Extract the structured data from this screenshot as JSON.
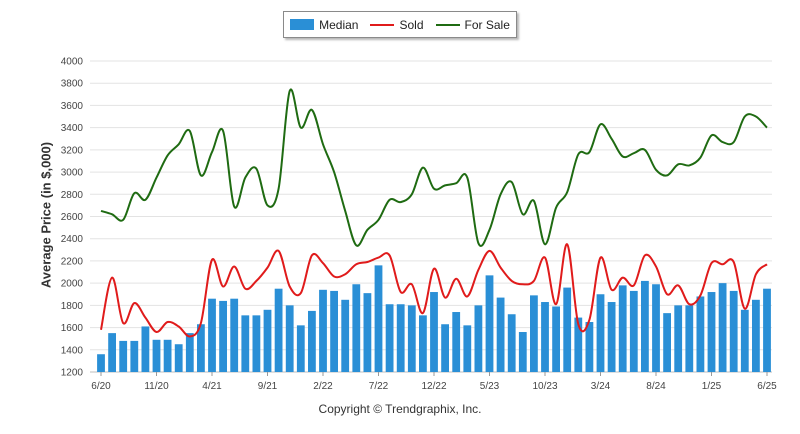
{
  "legend": {
    "median_label": "Median",
    "sold_label": "Sold",
    "forsale_label": "For Sale"
  },
  "copyright": "Copyright © Trendgraphix, Inc.",
  "colors": {
    "median": "#2a8fd6",
    "sold": "#e01b1b",
    "forsale": "#1f6b12",
    "grid": "#e3e3e3",
    "axis_text": "#444444"
  },
  "chart_data": {
    "type": "bar",
    "title": "",
    "xlabel": "",
    "ylabel": "Average Price (in $,000)",
    "ylim": [
      1200,
      4000
    ],
    "yticks": [
      1200,
      1400,
      1600,
      1800,
      2000,
      2200,
      2400,
      2600,
      2800,
      3000,
      3200,
      3400,
      3600,
      3800,
      4000
    ],
    "grid": true,
    "legend_position": "top-center",
    "x_tick_labels": [
      {
        "index": 0,
        "label": "6/20"
      },
      {
        "index": 5,
        "label": "11/20"
      },
      {
        "index": 10,
        "label": "4/21"
      },
      {
        "index": 15,
        "label": "9/21"
      },
      {
        "index": 20,
        "label": "2/22"
      },
      {
        "index": 25,
        "label": "7/22"
      },
      {
        "index": 30,
        "label": "12/22"
      },
      {
        "index": 35,
        "label": "5/23"
      },
      {
        "index": 40,
        "label": "10/23"
      },
      {
        "index": 45,
        "label": "3/24"
      },
      {
        "index": 50,
        "label": "8/24"
      },
      {
        "index": 55,
        "label": "1/25"
      },
      {
        "index": 60,
        "label": "6/25"
      }
    ],
    "series": [
      {
        "name": "Median",
        "kind": "bar",
        "values": [
          1360,
          1550,
          1480,
          1480,
          1610,
          1490,
          1490,
          1450,
          1550,
          1630,
          1860,
          1840,
          1860,
          1710,
          1710,
          1760,
          1950,
          1800,
          1620,
          1750,
          1940,
          1930,
          1850,
          1990,
          1910,
          2160,
          1810,
          1810,
          1800,
          1710,
          1920,
          1630,
          1740,
          1620,
          1800,
          2070,
          1870,
          1720,
          1560,
          1890,
          1830,
          1790,
          1960,
          1690,
          1650,
          1900,
          1830,
          1980,
          1930,
          2020,
          1990,
          1730,
          1800,
          1800,
          1880,
          1920,
          2000,
          1930,
          1760,
          1850,
          1950
        ]
      },
      {
        "name": "Sold",
        "kind": "line",
        "values": [
          1580,
          2050,
          1640,
          1820,
          1690,
          1560,
          1650,
          1610,
          1520,
          1640,
          2210,
          1970,
          2150,
          1950,
          2020,
          2140,
          2290,
          1970,
          1910,
          2250,
          2180,
          2060,
          2080,
          2170,
          2190,
          2230,
          2250,
          1920,
          1990,
          1730,
          2130,
          1870,
          2040,
          1880,
          2120,
          2290,
          2140,
          2020,
          1990,
          2020,
          2230,
          1810,
          2350,
          1630,
          1670,
          2230,
          1940,
          2050,
          1980,
          2250,
          2150,
          1900,
          1980,
          1810,
          1890,
          2180,
          2170,
          2190,
          1770,
          2080,
          2170
        ]
      },
      {
        "name": "For Sale",
        "kind": "line",
        "values": [
          2650,
          2620,
          2570,
          2810,
          2750,
          2950,
          3150,
          3250,
          3370,
          2970,
          3180,
          3370,
          2690,
          2950,
          3030,
          2700,
          2850,
          3730,
          3400,
          3560,
          3250,
          3000,
          2650,
          2340,
          2480,
          2570,
          2750,
          2730,
          2800,
          3040,
          2850,
          2880,
          2900,
          2950,
          2360,
          2480,
          2800,
          2910,
          2620,
          2740,
          2350,
          2680,
          2820,
          3160,
          3180,
          3430,
          3300,
          3140,
          3170,
          3200,
          3020,
          2970,
          3070,
          3060,
          3130,
          3330,
          3270,
          3270,
          3500,
          3500,
          3400
        ]
      }
    ]
  }
}
